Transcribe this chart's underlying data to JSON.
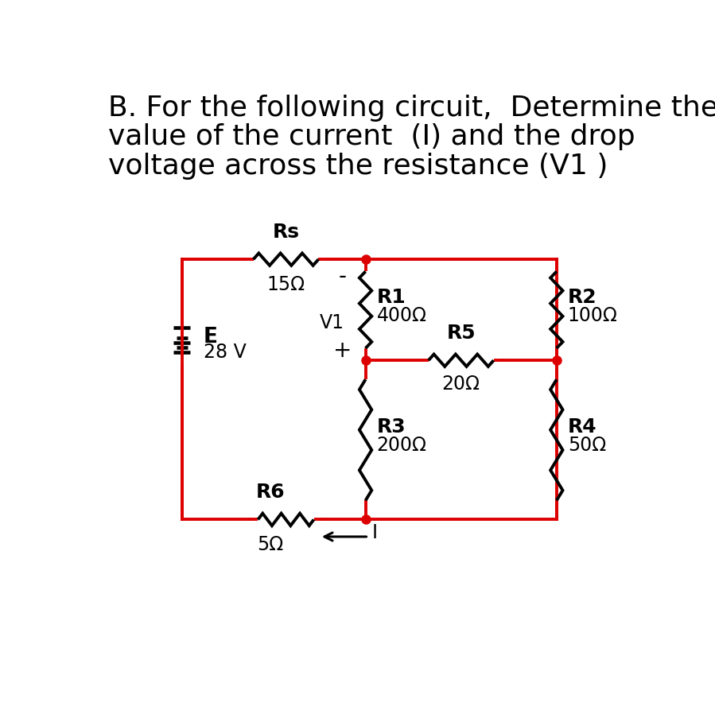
{
  "title_line1": "B. For the following circuit,  Determine the",
  "title_line2": "value of the current  (I) and the drop",
  "title_line3": "voltage across the resistance (V1 )",
  "circuit_color": "#dd0000",
  "wire_color": "#dd0000",
  "resistor_color": "#000000",
  "background_color": "#ffffff",
  "title_fontsize": 26,
  "label_fontsize": 17,
  "omega": "Ω"
}
